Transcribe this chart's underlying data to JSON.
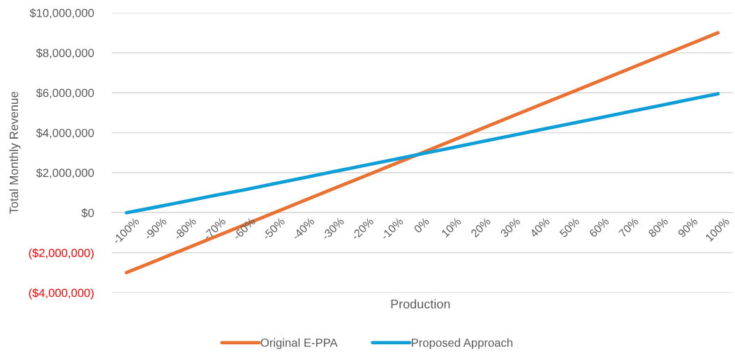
{
  "chart_data": {
    "type": "line",
    "xlabel": "Production",
    "ylabel": "Total Monthly Revenue",
    "categories": [
      "-100%",
      "-90%",
      "-80%",
      "-70%",
      "-60%",
      "-50%",
      "-40%",
      "-30%",
      "-20%",
      "-10%",
      "0%",
      "10%",
      "20%",
      "30%",
      "40%",
      "50%",
      "60%",
      "70%",
      "80%",
      "90%",
      "100%"
    ],
    "series": [
      {
        "name": "Original E-PPA",
        "color": "#e97132",
        "values": [
          -3000000,
          -2400000,
          -1800000,
          -1200000,
          -600000,
          0,
          600000,
          1200000,
          1800000,
          2400000,
          3000000,
          3600000,
          4200000,
          4800000,
          5400000,
          6000000,
          6600000,
          7200000,
          7800000,
          8400000,
          9000000
        ]
      },
      {
        "name": "Proposed Approach",
        "color": "#0f9ed5",
        "values": [
          0,
          280000,
          570000,
          870000,
          1150000,
          1450000,
          1750000,
          2050000,
          2350000,
          2650000,
          2950000,
          3250000,
          3550000,
          3850000,
          4150000,
          4450000,
          4750000,
          5050000,
          5350000,
          5650000,
          5950000
        ]
      }
    ],
    "ylim": [
      -4000000,
      10000000
    ],
    "yticks": [
      {
        "value": -4000000,
        "label": "($4,000,000)"
      },
      {
        "value": -2000000,
        "label": "($2,000,000)"
      },
      {
        "value": 0,
        "label": "$0"
      },
      {
        "value": 2000000,
        "label": "$2,000,000"
      },
      {
        "value": 4000000,
        "label": "$4,000,000"
      },
      {
        "value": 6000000,
        "label": "$6,000,000"
      },
      {
        "value": 8000000,
        "label": "$8,000,000"
      },
      {
        "value": 10000000,
        "label": "$10,000,000"
      }
    ],
    "grid": "y",
    "legend": "bottom",
    "line_style": "solid",
    "marker": "none"
  }
}
